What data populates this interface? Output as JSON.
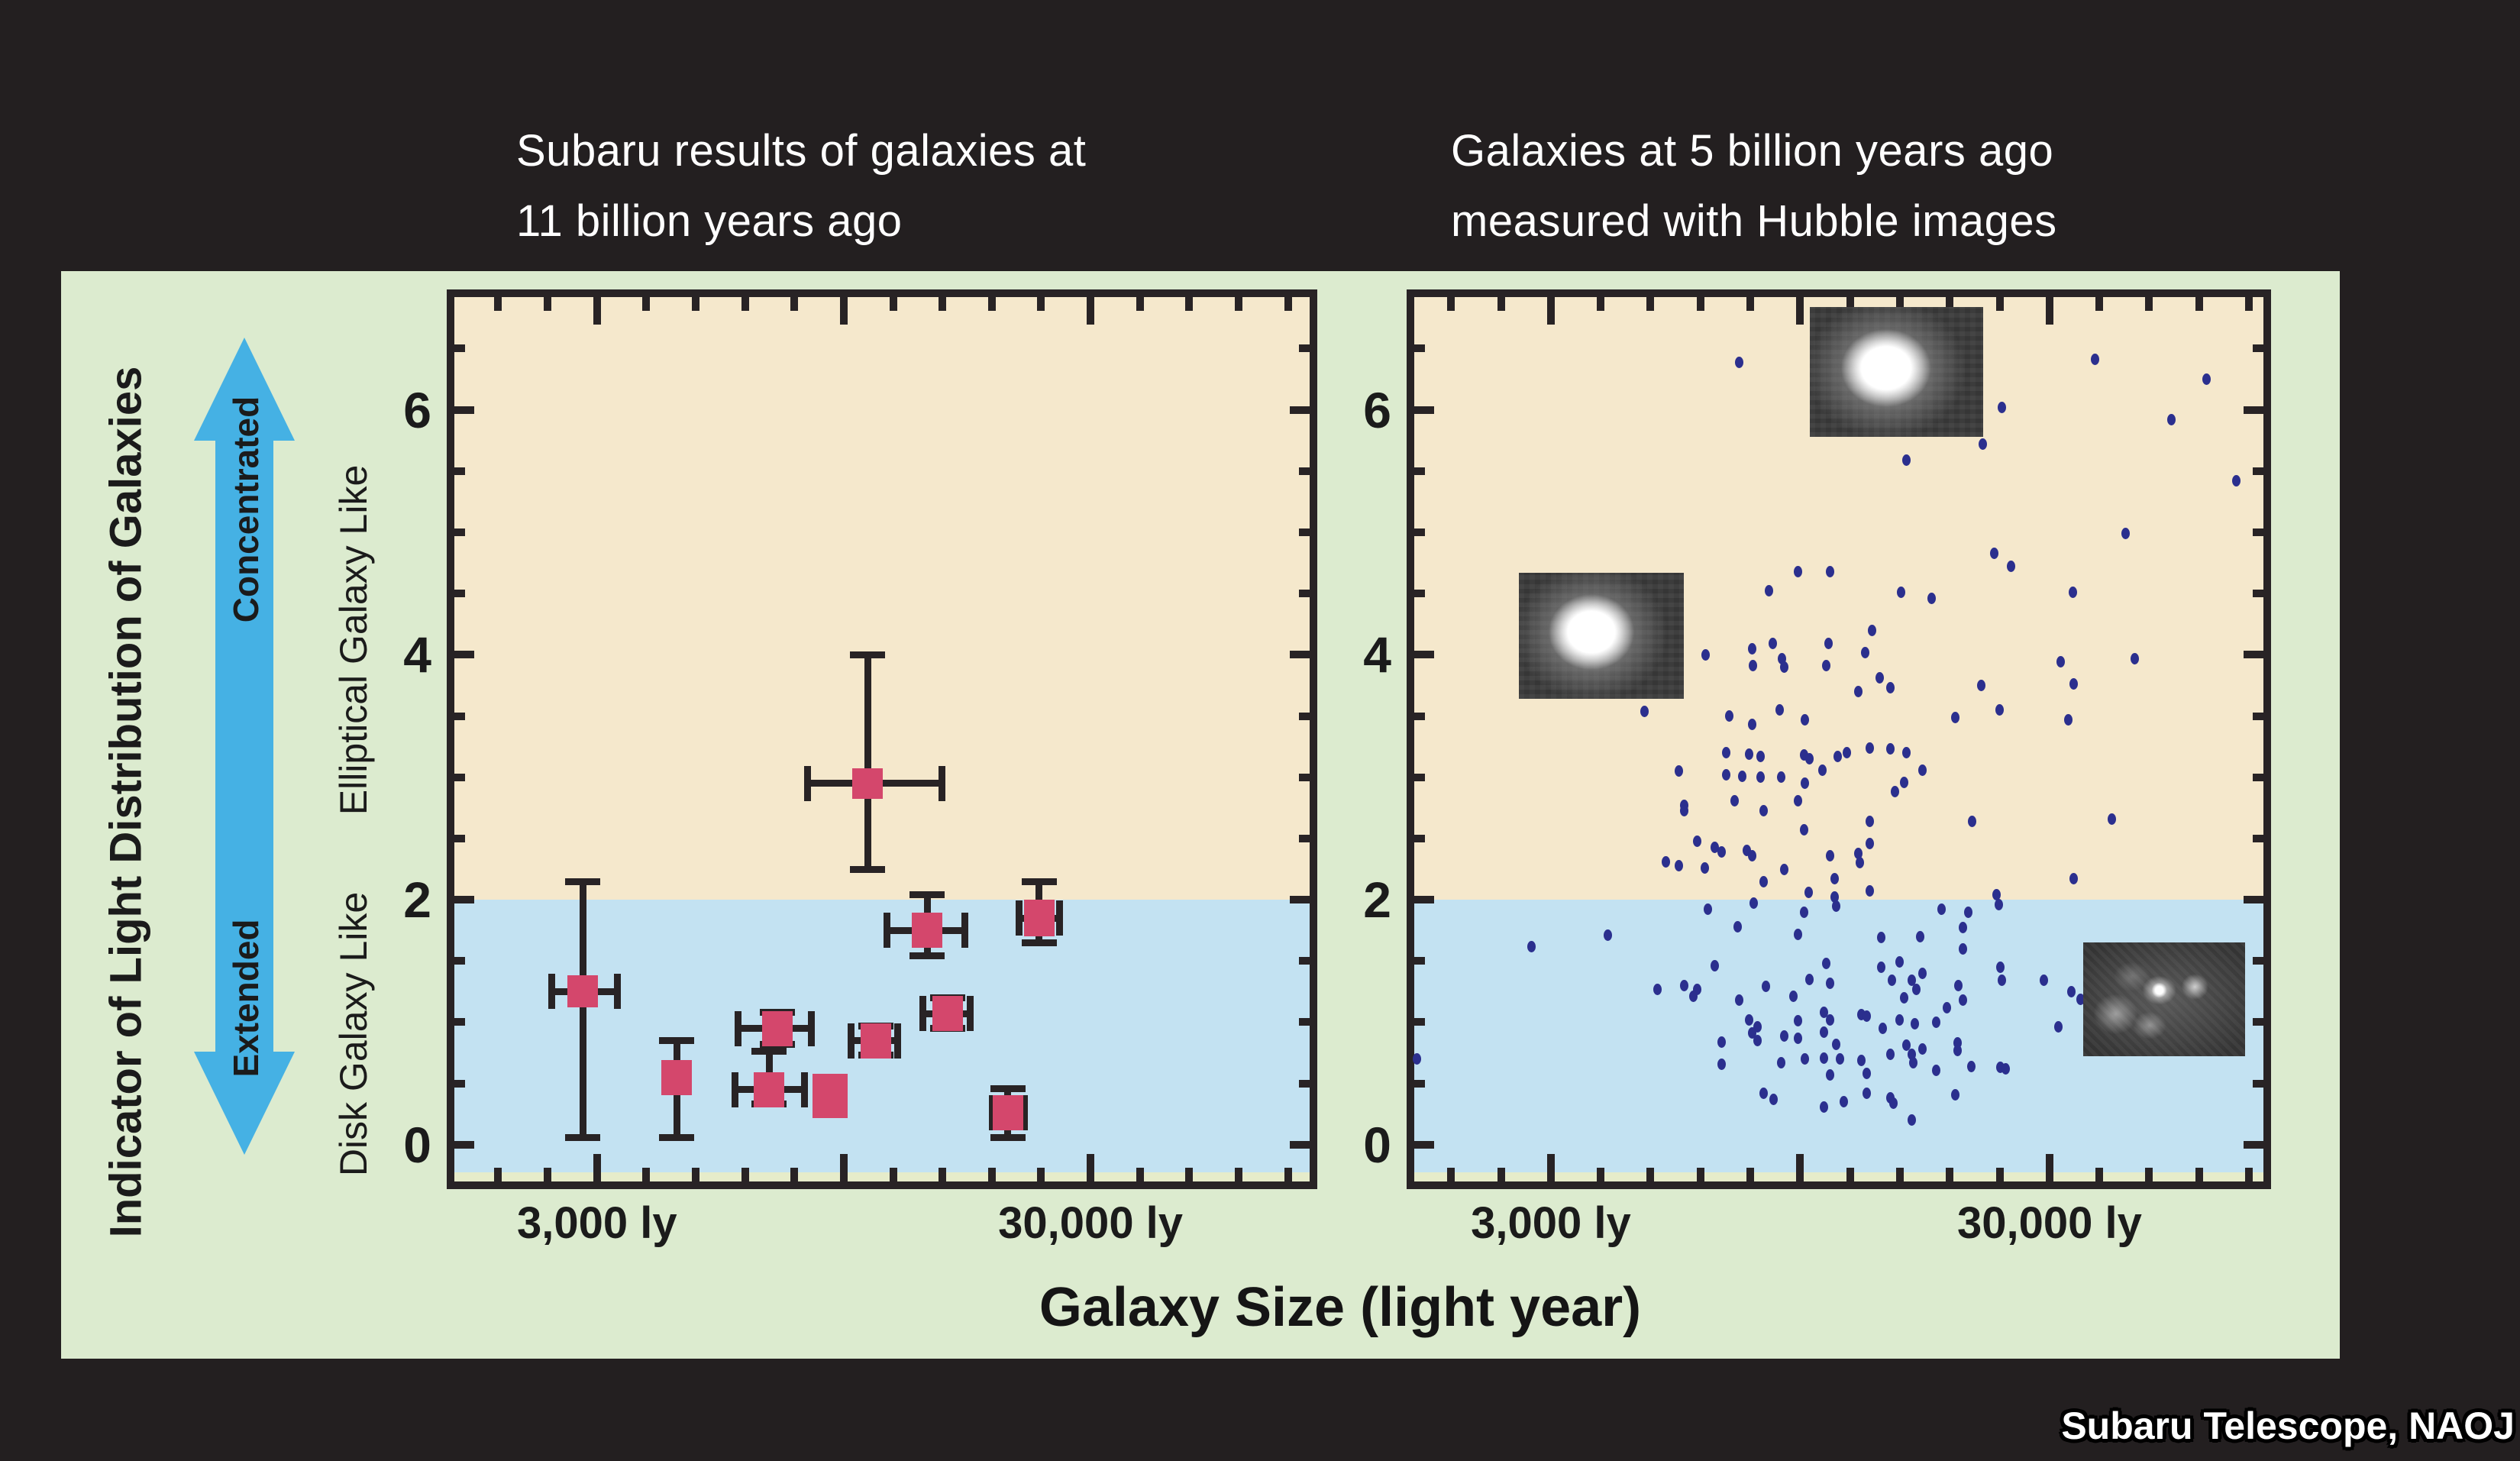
{
  "titles": {
    "left": "Subaru results of galaxies at\n11 billion years ago",
    "right": "Galaxies at 5 billion years ago\nmeasured with Hubble images"
  },
  "annotations": {
    "axis_label": "Indicator of Light Distribution of Galaxies",
    "arrow_top": "Concentrated",
    "arrow_bottom": "Extended",
    "upper_category": "Elliptical Galaxy Like",
    "lower_category": "Disk Galaxy Like"
  },
  "xlabel": "Galaxy Size (light year)",
  "credit": "Subaru Telescope, NAOJ",
  "colors": {
    "background": "#231f20",
    "panel_green": "#dcebcf",
    "region_tan": "#f5e8cc",
    "region_blue": "#c3e2f2",
    "region_strip": "#e6ecca",
    "marker_pink": "#d4476c",
    "dot_navy": "#2b2f8e",
    "arrow_blue": "#45b1e4",
    "stroke_dark": "#282325",
    "text_white": "#ffffff"
  },
  "chart_data": [
    {
      "type": "scatter",
      "title": "Subaru results of galaxies at 11 billion years ago",
      "xlabel": "Galaxy Size (light year)",
      "ylabel": "Indicator of Light Distribution of Galaxies",
      "x_scale": "log",
      "x_log_range": [
        3.188,
        4.921
      ],
      "y_range": [
        -0.3,
        6.92
      ],
      "threshold_y": 2,
      "grid": false,
      "legend": "none",
      "x_ticks": [
        {
          "v": 1892
        },
        {
          "v": 2382
        },
        {
          "v": 3000,
          "major": true,
          "label": "3,000 ly"
        },
        {
          "v": 3775
        },
        {
          "v": 4753
        },
        {
          "v": 5984
        },
        {
          "v": 7534
        },
        {
          "v": 9487,
          "major": true
        },
        {
          "v": 11943
        },
        {
          "v": 15036
        },
        {
          "v": 18929
        },
        {
          "v": 23829
        },
        {
          "v": 30000,
          "major": true,
          "label": "30,000 ly"
        },
        {
          "v": 37770
        },
        {
          "v": 47534
        },
        {
          "v": 59844
        },
        {
          "v": 75336
        }
      ],
      "y_ticks": [
        {
          "v": 0,
          "major": true,
          "label": "0"
        },
        {
          "v": 0.5
        },
        {
          "v": 1
        },
        {
          "v": 1.5
        },
        {
          "v": 2,
          "major": true,
          "label": "2"
        },
        {
          "v": 2.5
        },
        {
          "v": 3
        },
        {
          "v": 3.5
        },
        {
          "v": 4,
          "major": true,
          "label": "4"
        },
        {
          "v": 4.5
        },
        {
          "v": 5
        },
        {
          "v": 5.5
        },
        {
          "v": 6,
          "major": true,
          "label": "6"
        },
        {
          "v": 6.5
        }
      ],
      "points": [
        {
          "x": 2810,
          "y": 1.25,
          "xerr": [
            2430,
            3300
          ],
          "yerr": [
            0.06,
            2.15
          ],
          "size": [
            40,
            42
          ]
        },
        {
          "x": 4350,
          "y": 0.55,
          "yerr": [
            0.06,
            0.85
          ],
          "size": [
            40,
            46
          ]
        },
        {
          "x": 6950,
          "y": 0.95,
          "xerr": [
            5800,
            8150
          ],
          "yerr": [
            0.82,
            1.08
          ],
          "size": [
            40,
            46
          ]
        },
        {
          "x": 6700,
          "y": 0.45,
          "xerr": [
            5700,
            7900
          ],
          "yerr": [
            0.33,
            0.76
          ],
          "size": [
            40,
            46
          ]
        },
        {
          "x": 8900,
          "y": 0.4,
          "size": [
            46,
            58
          ]
        },
        {
          "x": 11000,
          "y": 0.85,
          "xerr": [
            9800,
            12200
          ],
          "yerr": [
            0.73,
            0.97
          ],
          "size": [
            40,
            46
          ]
        },
        {
          "x": 10600,
          "y": 2.95,
          "xerr": [
            8000,
            15000
          ],
          "yerr": [
            2.25,
            4.0
          ],
          "size": [
            40,
            40
          ]
        },
        {
          "x": 14000,
          "y": 1.75,
          "xerr": [
            11600,
            16700
          ],
          "yerr": [
            1.54,
            2.04
          ],
          "size": [
            40,
            46
          ]
        },
        {
          "x": 15400,
          "y": 1.07,
          "xerr": [
            13700,
            17100
          ],
          "yerr": [
            0.95,
            1.2
          ],
          "size": [
            40,
            46
          ]
        },
        {
          "x": 20400,
          "y": 0.26,
          "xerr": [
            19000,
            22000
          ],
          "yerr": [
            0.06,
            0.46
          ],
          "size": [
            40,
            46
          ]
        },
        {
          "x": 23600,
          "y": 1.85,
          "xerr": [
            21500,
            26000
          ],
          "yerr": [
            1.65,
            2.15
          ],
          "size": [
            40,
            48
          ]
        }
      ],
      "images": []
    },
    {
      "type": "scatter",
      "title": "Galaxies at 5 billion years ago measured with Hubble images",
      "xlabel": "Galaxy Size (light year)",
      "ylabel": "Indicator of Light Distribution of Galaxies",
      "x_scale": "log",
      "x_log_range": [
        3.203,
        4.906
      ],
      "y_range": [
        -0.3,
        6.92
      ],
      "threshold_y": 2,
      "grid": false,
      "legend": "none",
      "x_ticks": [
        {
          "v": 1892
        },
        {
          "v": 2382
        },
        {
          "v": 3000,
          "major": true,
          "label": "3,000 ly"
        },
        {
          "v": 3775
        },
        {
          "v": 4753
        },
        {
          "v": 5984
        },
        {
          "v": 7534
        },
        {
          "v": 9487,
          "major": true
        },
        {
          "v": 11943
        },
        {
          "v": 15036
        },
        {
          "v": 18929
        },
        {
          "v": 23829
        },
        {
          "v": 30000,
          "major": true,
          "label": "30,000 ly"
        },
        {
          "v": 37770
        },
        {
          "v": 47534
        },
        {
          "v": 59844
        },
        {
          "v": 75336
        }
      ],
      "y_ticks": [
        {
          "v": 0,
          "major": true,
          "label": "0"
        },
        {
          "v": 0.5
        },
        {
          "v": 1
        },
        {
          "v": 1.5
        },
        {
          "v": 2,
          "major": true,
          "label": "2"
        },
        {
          "v": 2.5
        },
        {
          "v": 3
        },
        {
          "v": 3.5
        },
        {
          "v": 4,
          "major": true,
          "label": "4"
        },
        {
          "v": 4.5
        },
        {
          "v": 5
        },
        {
          "v": 5.5
        },
        {
          "v": 6,
          "major": true,
          "label": "6"
        },
        {
          "v": 6.5
        }
      ],
      "dots": [
        [
          7160,
          6.39
        ],
        [
          37000,
          6.41
        ],
        [
          62000,
          6.25
        ],
        [
          24100,
          6.02
        ],
        [
          52700,
          5.92
        ],
        [
          22000,
          5.72
        ],
        [
          15500,
          5.59
        ],
        [
          71000,
          5.42
        ],
        [
          42600,
          4.99
        ],
        [
          23200,
          4.83
        ],
        [
          25100,
          4.72
        ],
        [
          9400,
          4.68
        ],
        [
          10900,
          4.68
        ],
        [
          8200,
          4.52
        ],
        [
          15100,
          4.51
        ],
        [
          17400,
          4.46
        ],
        [
          33400,
          4.51
        ],
        [
          13200,
          4.2
        ],
        [
          7600,
          4.05
        ],
        [
          8350,
          4.09
        ],
        [
          6130,
          4.0
        ],
        [
          8730,
          3.97
        ],
        [
          10800,
          4.09
        ],
        [
          7630,
          3.91
        ],
        [
          8800,
          3.9
        ],
        [
          10700,
          3.91
        ],
        [
          12800,
          4.02
        ],
        [
          13700,
          3.81
        ],
        [
          14400,
          3.73
        ],
        [
          12400,
          3.7
        ],
        [
          21900,
          3.75
        ],
        [
          44400,
          3.97
        ],
        [
          31600,
          3.94
        ],
        [
          33500,
          3.76
        ],
        [
          4620,
          3.54
        ],
        [
          6840,
          3.5
        ],
        [
          8640,
          3.55
        ],
        [
          9700,
          3.47
        ],
        [
          7600,
          3.43
        ],
        [
          19400,
          3.49
        ],
        [
          32700,
          3.47
        ],
        [
          23800,
          3.55
        ],
        [
          13100,
          3.24
        ],
        [
          14400,
          3.23
        ],
        [
          15500,
          3.2
        ],
        [
          6740,
          3.2
        ],
        [
          7500,
          3.19
        ],
        [
          7900,
          3.17
        ],
        [
          9640,
          3.18
        ],
        [
          9900,
          3.15
        ],
        [
          11270,
          3.17
        ],
        [
          11760,
          3.2
        ],
        [
          5420,
          3.05
        ],
        [
          6740,
          3.02
        ],
        [
          7260,
          3.01
        ],
        [
          7900,
          3.0
        ],
        [
          8700,
          3.0
        ],
        [
          10500,
          3.06
        ],
        [
          16700,
          3.06
        ],
        [
          9700,
          2.95
        ],
        [
          15300,
          2.96
        ],
        [
          14700,
          2.88
        ],
        [
          5560,
          2.77
        ],
        [
          5560,
          2.73
        ],
        [
          7000,
          2.81
        ],
        [
          9400,
          2.81
        ],
        [
          8000,
          2.73
        ],
        [
          13100,
          2.64
        ],
        [
          21000,
          2.64
        ],
        [
          40000,
          2.66
        ],
        [
          9640,
          2.57
        ],
        [
          5900,
          2.48
        ],
        [
          6400,
          2.43
        ],
        [
          6600,
          2.39
        ],
        [
          7400,
          2.4
        ],
        [
          7600,
          2.36
        ],
        [
          13100,
          2.46
        ],
        [
          10900,
          2.36
        ],
        [
          12400,
          2.38
        ],
        [
          12500,
          2.3
        ],
        [
          5100,
          2.31
        ],
        [
          5420,
          2.28
        ],
        [
          6100,
          2.26
        ],
        [
          8800,
          2.25
        ],
        [
          8000,
          2.15
        ],
        [
          11100,
          2.17
        ],
        [
          33500,
          2.17
        ],
        [
          9850,
          2.06
        ],
        [
          13100,
          2.07
        ],
        [
          11100,
          2.02
        ],
        [
          23500,
          2.04
        ],
        [
          7650,
          1.97
        ],
        [
          11200,
          1.95
        ],
        [
          23700,
          1.96
        ],
        [
          18200,
          1.92
        ],
        [
          20600,
          1.9
        ],
        [
          9640,
          1.9
        ],
        [
          6200,
          1.92
        ],
        [
          7100,
          1.78
        ],
        [
          9400,
          1.72
        ],
        [
          3900,
          1.71
        ],
        [
          13800,
          1.69
        ],
        [
          16500,
          1.7
        ],
        [
          20100,
          1.77
        ],
        [
          2740,
          1.62
        ],
        [
          20100,
          1.6
        ],
        [
          6400,
          1.46
        ],
        [
          10700,
          1.48
        ],
        [
          13800,
          1.45
        ],
        [
          15000,
          1.49
        ],
        [
          16700,
          1.4
        ],
        [
          23900,
          1.45
        ],
        [
          9900,
          1.35
        ],
        [
          10900,
          1.32
        ],
        [
          14500,
          1.34
        ],
        [
          15900,
          1.34
        ],
        [
          19700,
          1.3
        ],
        [
          24100,
          1.34
        ],
        [
          29200,
          1.34
        ],
        [
          4900,
          1.27
        ],
        [
          8100,
          1.29
        ],
        [
          16200,
          1.27
        ],
        [
          5560,
          1.3
        ],
        [
          5900,
          1.27
        ],
        [
          5800,
          1.21
        ],
        [
          7150,
          1.18
        ],
        [
          9200,
          1.21
        ],
        [
          15300,
          1.2
        ],
        [
          20100,
          1.18
        ],
        [
          33200,
          1.25
        ],
        [
          34600,
          1.19
        ],
        [
          7500,
          1.02
        ],
        [
          7800,
          0.96
        ],
        [
          9400,
          1.01
        ],
        [
          10600,
          1.08
        ],
        [
          10900,
          1.02
        ],
        [
          12600,
          1.06
        ],
        [
          12900,
          1.05
        ],
        [
          13900,
          0.95
        ],
        [
          15000,
          1.02
        ],
        [
          16100,
          0.99
        ],
        [
          17800,
          1.0
        ],
        [
          18700,
          1.12
        ],
        [
          31200,
          0.96
        ],
        [
          6600,
          0.84
        ],
        [
          7600,
          0.91
        ],
        [
          7800,
          0.85
        ],
        [
          8800,
          0.89
        ],
        [
          9400,
          0.87
        ],
        [
          10600,
          0.92
        ],
        [
          11200,
          0.82
        ],
        [
          15500,
          0.81
        ],
        [
          16700,
          0.78
        ],
        [
          19600,
          0.83
        ],
        [
          1615,
          0.7
        ],
        [
          6600,
          0.66
        ],
        [
          8700,
          0.67
        ],
        [
          9700,
          0.7
        ],
        [
          10600,
          0.71
        ],
        [
          11400,
          0.7
        ],
        [
          12600,
          0.69
        ],
        [
          14400,
          0.74
        ],
        [
          15900,
          0.74
        ],
        [
          16000,
          0.67
        ],
        [
          17800,
          0.61
        ],
        [
          19600,
          0.77
        ],
        [
          20900,
          0.64
        ],
        [
          23900,
          0.63
        ],
        [
          24500,
          0.62
        ],
        [
          12900,
          0.58
        ],
        [
          10900,
          0.57
        ],
        [
          8000,
          0.42
        ],
        [
          8400,
          0.37
        ],
        [
          10600,
          0.31
        ],
        [
          11600,
          0.35
        ],
        [
          12900,
          0.42
        ],
        [
          14400,
          0.38
        ],
        [
          14600,
          0.34
        ],
        [
          15900,
          0.2
        ],
        [
          19400,
          0.41
        ]
      ],
      "images": [
        {
          "name": "elliptical-galaxy-cutout-top",
          "kind": "elliptical",
          "x": [
            9900,
            22100
          ],
          "y": [
            5.78,
            6.84
          ]
        },
        {
          "name": "elliptical-galaxy-cutout-left",
          "kind": "elliptical",
          "x": [
            2590,
            5550
          ],
          "y": [
            3.64,
            4.67
          ]
        },
        {
          "name": "disk-galaxy-cutout",
          "kind": "spiral",
          "x": [
            35000,
            74000
          ],
          "y": [
            0.72,
            1.65
          ]
        }
      ]
    }
  ]
}
